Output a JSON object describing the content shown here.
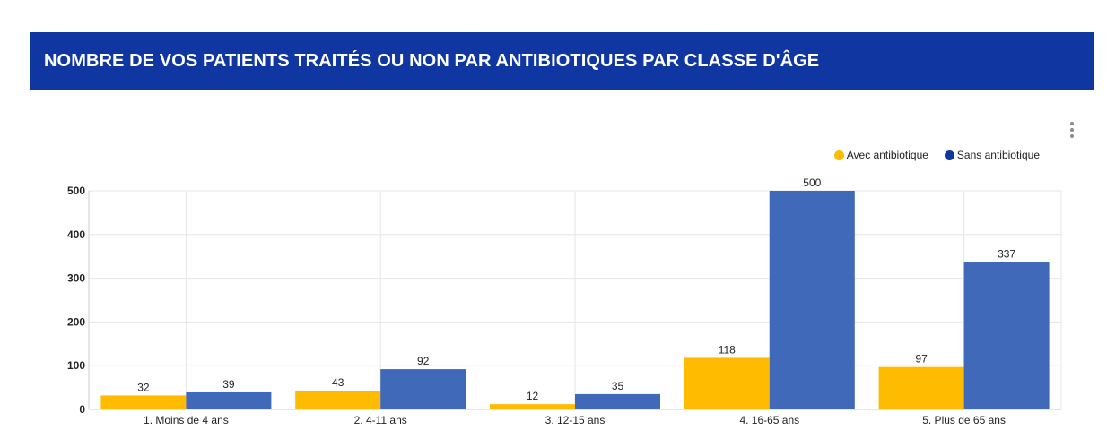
{
  "header": {
    "title": "NOMBRE DE VOS PATIENTS TRAITÉS OU NON PAR ANTIBIOTIQUES PAR CLASSE D'ÂGE"
  },
  "menu": {
    "icon": "more-vert-icon"
  },
  "colors": {
    "header_bg": "#0f36a1",
    "series_1": "#ffbb00",
    "series_2": "#4169b9",
    "legend_series_2": "#0f36a1"
  },
  "chart_data": {
    "type": "bar",
    "title": "NOMBRE DE VOS PATIENTS TRAITÉS OU NON PAR ANTIBIOTIQUES PAR CLASSE D'ÂGE",
    "categories": [
      "1. Moins de 4 ans",
      "2. 4-11 ans",
      "3. 12-15 ans",
      "4. 16-65 ans",
      "5. Plus de 65 ans"
    ],
    "series": [
      {
        "name": "Avec antibiotique",
        "values": [
          32,
          43,
          12,
          118,
          97
        ]
      },
      {
        "name": "Sans antibiotique",
        "values": [
          39,
          92,
          35,
          500,
          337
        ]
      }
    ],
    "xlabel": "",
    "ylabel": "",
    "ylim": [
      0,
      500
    ],
    "yticks": [
      0,
      100,
      200,
      300,
      400,
      500
    ],
    "grid": true,
    "legend_position": "top-right"
  }
}
